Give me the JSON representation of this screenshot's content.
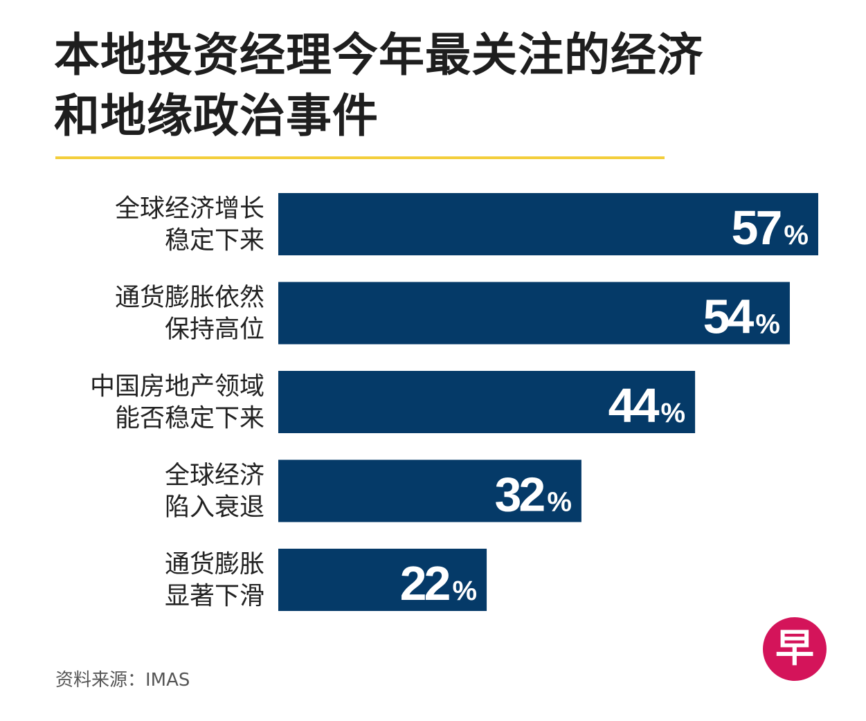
{
  "title_lines": [
    "本地投资经理今年最关注的经济",
    "和地缘政治事件"
  ],
  "source": "资料来源：IMAS",
  "logo_text": "早",
  "colors": {
    "bar": "#053a68",
    "accent": "#f3ce3c",
    "label": "#222222",
    "value": "#ffffff",
    "logo": "#d4145a"
  },
  "chart_data": {
    "type": "bar",
    "orientation": "horizontal",
    "title": "本地投资经理今年最关注的经济和地缘政治事件",
    "unit": "%",
    "xlim": [
      0,
      57
    ],
    "categories": [
      [
        "全球经济增长",
        "稳定下来"
      ],
      [
        "通货膨胀依然",
        "保持高位"
      ],
      [
        "中国房地产领域",
        "能否稳定下来"
      ],
      [
        "全球经济",
        "陷入衰退"
      ],
      [
        "通货膨胀",
        "显著下滑"
      ]
    ],
    "values": [
      57,
      54,
      44,
      32,
      22
    ],
    "value_labels": [
      "57",
      "54",
      "44",
      "32",
      "22"
    ]
  }
}
